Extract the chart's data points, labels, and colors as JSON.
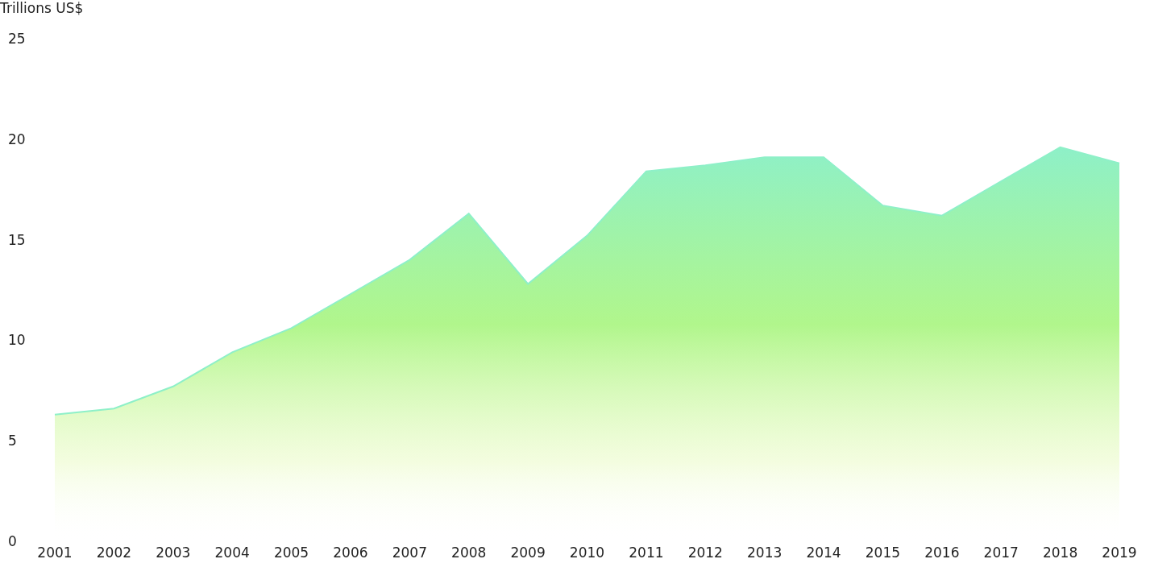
{
  "chart_data": {
    "type": "area",
    "ylabel": "Trillions US$",
    "categories": [
      "2001",
      "2002",
      "2003",
      "2004",
      "2005",
      "2006",
      "2007",
      "2008",
      "2009",
      "2010",
      "2011",
      "2012",
      "2013",
      "2014",
      "2015",
      "2016",
      "2017",
      "2018",
      "2019"
    ],
    "series": [
      {
        "color": "#8ef0c8",
        "values": [
          6.3,
          6.6,
          7.7,
          9.4,
          10.6,
          12.3,
          14.0,
          16.3,
          12.8,
          15.2,
          18.4,
          18.7,
          19.1,
          19.1,
          16.7,
          16.2,
          17.9,
          19.6,
          18.8
        ]
      }
    ],
    "ylim": [
      0,
      25
    ],
    "yticks": [
      0,
      5,
      10,
      15,
      20,
      25
    ],
    "grid": false,
    "legend": false
  }
}
